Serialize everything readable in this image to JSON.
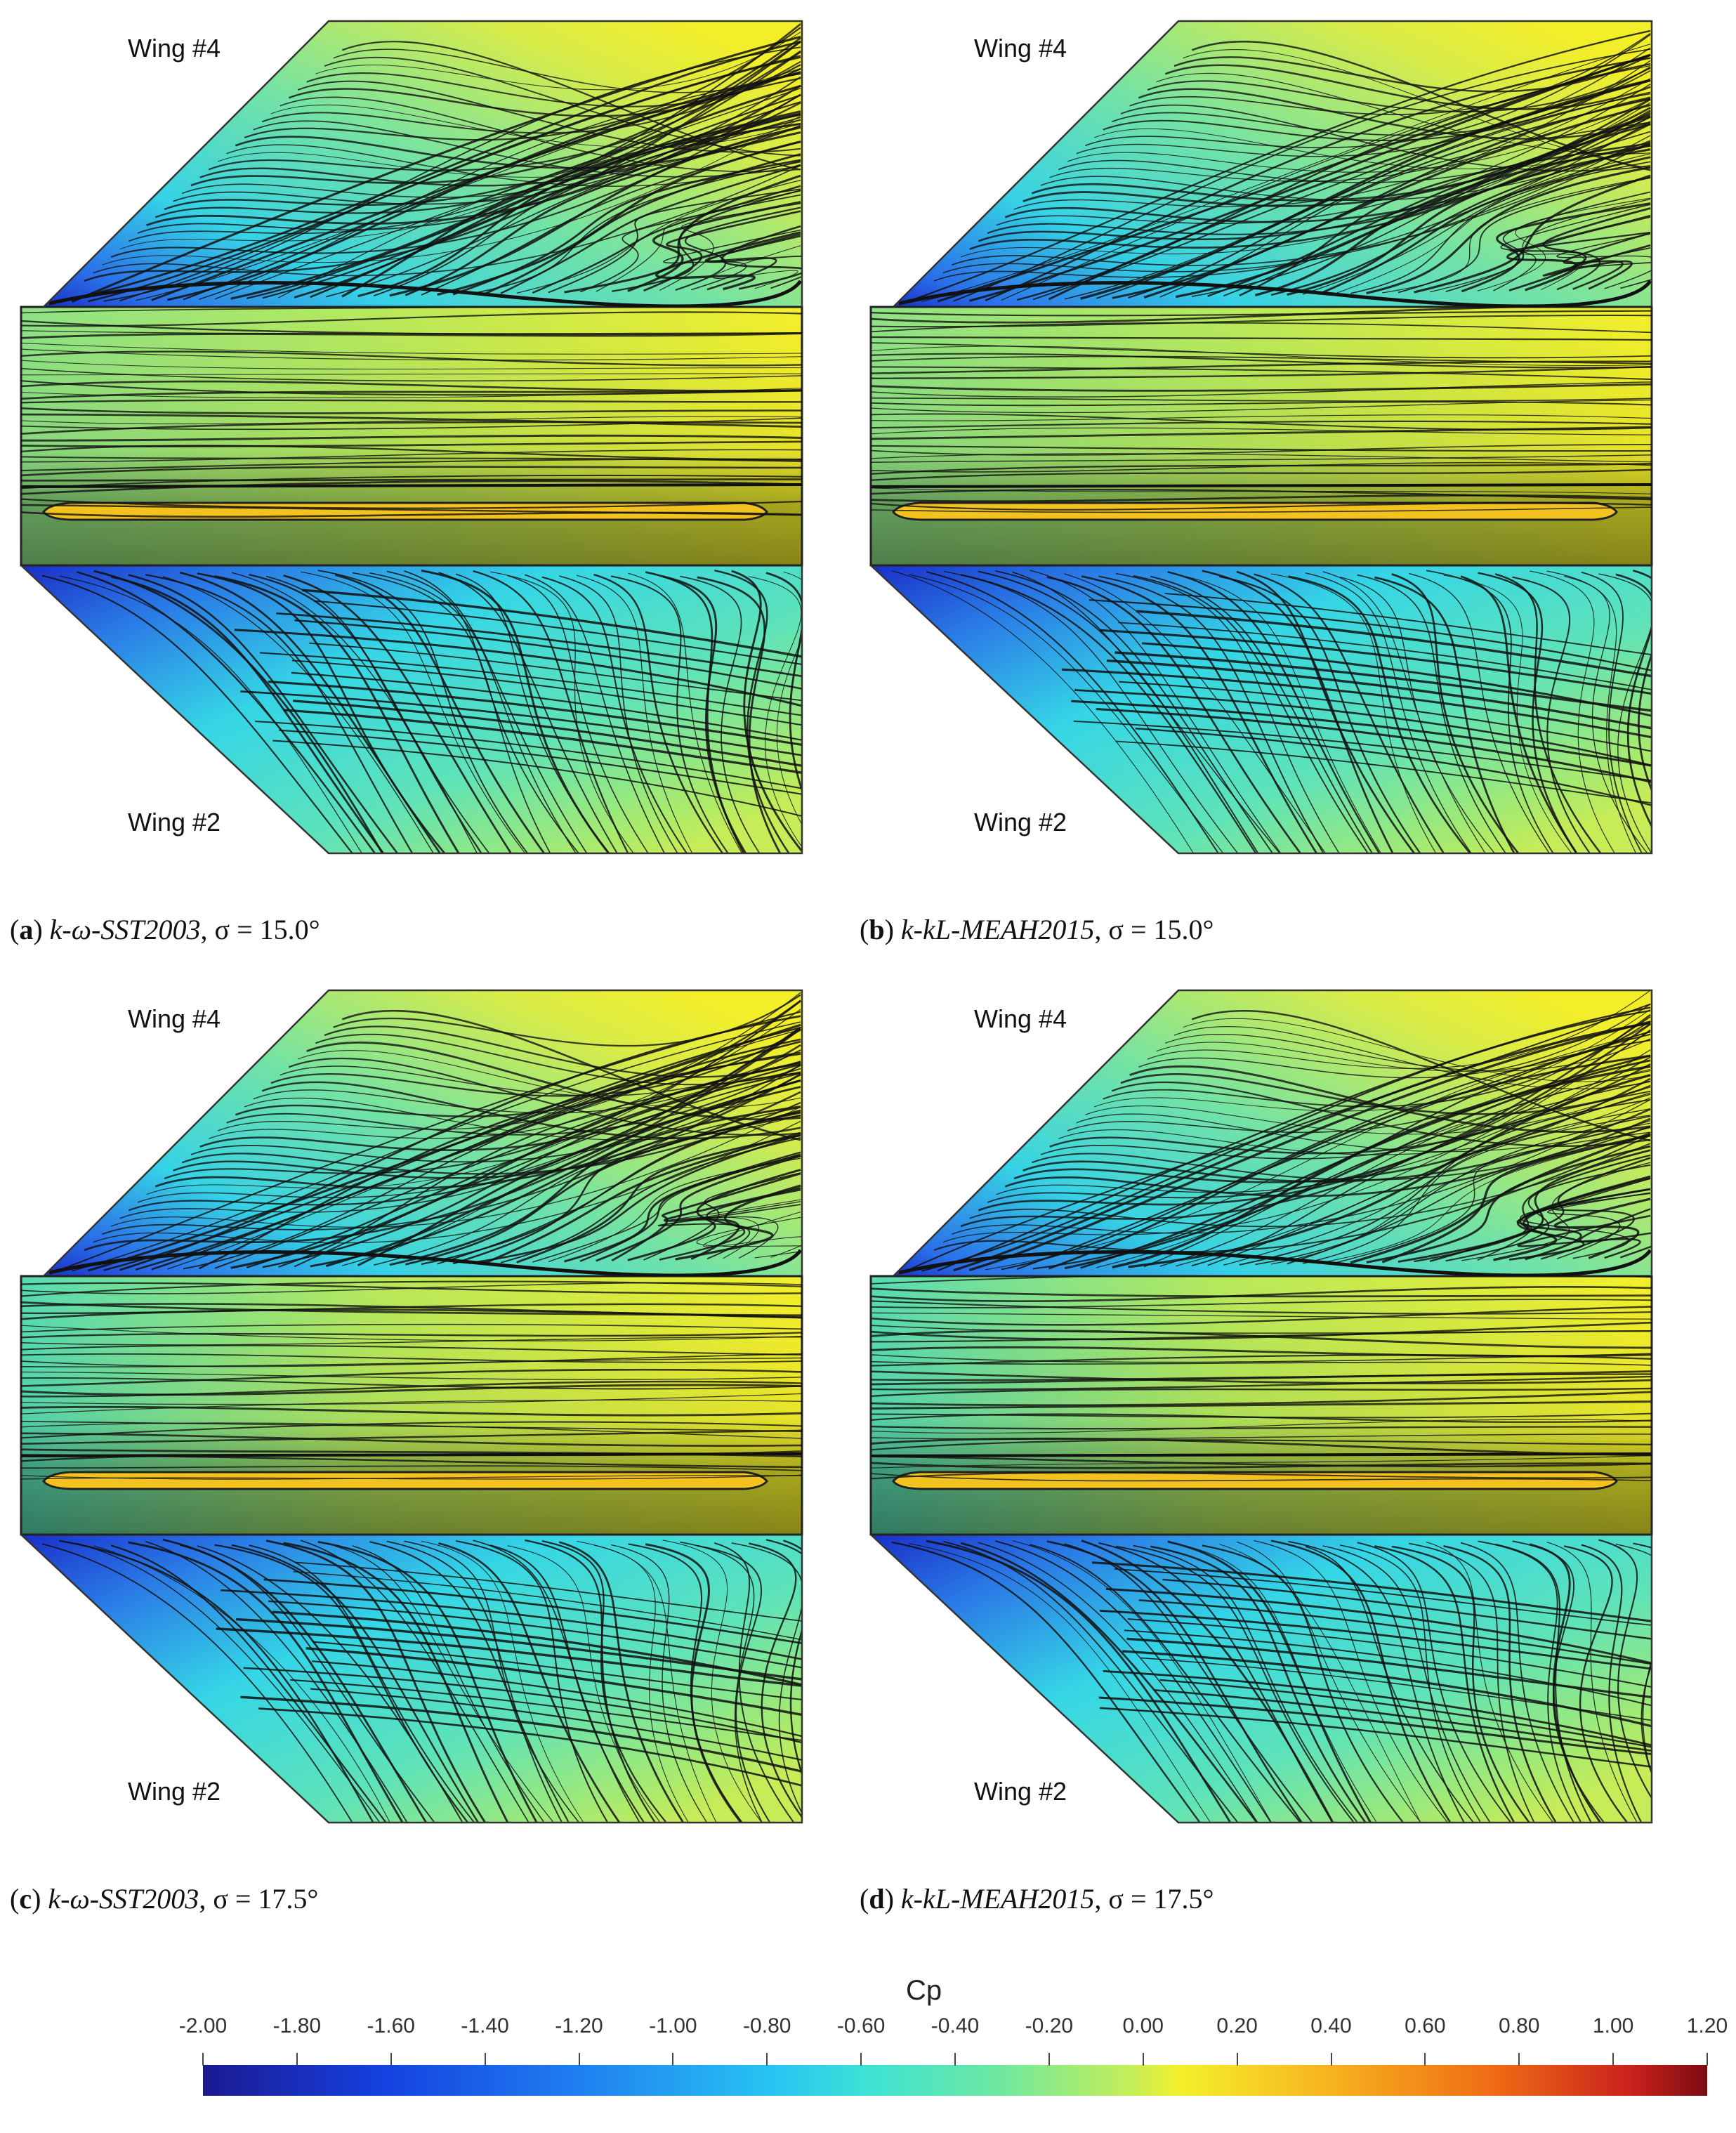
{
  "panels": [
    {
      "id": "a",
      "top_label": "Wing #4",
      "bottom_label": "Wing #2",
      "caption_letter": "a",
      "caption_model": "k-ω-SST2003",
      "caption_angle": "σ = 15.0°"
    },
    {
      "id": "b",
      "top_label": "Wing #4",
      "bottom_label": "Wing #2",
      "caption_letter": "b",
      "caption_model": "k-kL-MEAH2015",
      "caption_angle": "σ = 15.0°"
    },
    {
      "id": "c",
      "top_label": "Wing #4",
      "bottom_label": "Wing #2",
      "caption_letter": "c",
      "caption_model": "k-ω-SST2003",
      "caption_angle": "σ = 17.5°"
    },
    {
      "id": "d",
      "top_label": "Wing #4",
      "bottom_label": "Wing #2",
      "caption_letter": "d",
      "caption_model": "k-kL-MEAH2015",
      "caption_angle": "σ = 17.5°"
    }
  ],
  "colorbar": {
    "title": "Cp",
    "ticks": [
      "-2.00",
      "-1.80",
      "-1.60",
      "-1.40",
      "-1.20",
      "-1.00",
      "-0.80",
      "-0.60",
      "-0.40",
      "-0.20",
      "0.00",
      "0.20",
      "0.40",
      "0.60",
      "0.80",
      "1.00",
      "1.20"
    ],
    "range": [
      -2.0,
      1.2
    ]
  }
}
